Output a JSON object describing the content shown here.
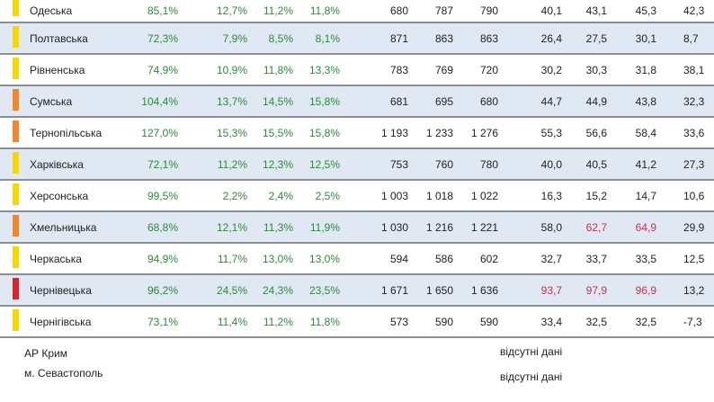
{
  "colors": {
    "yellow": "#f5d800",
    "orange": "#f0872a",
    "red": "#d9232e"
  },
  "rows": [
    {
      "region": "Одеська",
      "level": "yellow",
      "v1": "85,1%",
      "v2": "12,7%",
      "v3": "11,2%",
      "v4": "11,8%",
      "n1": "680",
      "n2": "787",
      "n3": "790",
      "r1": "40,1",
      "r2": "43,1",
      "r3": "45,3",
      "d": "42,3"
    },
    {
      "region": "Полтавська",
      "level": "yellow",
      "v1": "72,3%",
      "v2": "7,9%",
      "v3": "8,5%",
      "v4": "8,1%",
      "n1": "871",
      "n2": "863",
      "n3": "863",
      "r1": "26,4",
      "r2": "27,5",
      "r3": "30,1",
      "d": "8,7"
    },
    {
      "region": "Рівненська",
      "level": "yellow",
      "v1": "74,9%",
      "v2": "10,9%",
      "v3": "11,8%",
      "v4": "13,3%",
      "n1": "783",
      "n2": "769",
      "n3": "720",
      "r1": "30,2",
      "r2": "30,3",
      "r3": "31,8",
      "d": "38,1"
    },
    {
      "region": "Сумська",
      "level": "orange",
      "v1": "104,4%",
      "v2": "13,7%",
      "v3": "14,5%",
      "v4": "15,8%",
      "n1": "681",
      "n2": "695",
      "n3": "680",
      "r1": "44,7",
      "r2": "44,9",
      "r3": "43,8",
      "d": "32,3"
    },
    {
      "region": "Тернопільська",
      "level": "orange",
      "v1": "127,0%",
      "v2": "15,3%",
      "v3": "15,5%",
      "v4": "15,8%",
      "n1": "1 193",
      "n2": "1 233",
      "n3": "1 276",
      "r1": "55,3",
      "r2": "56,6",
      "r3": "58,4",
      "d": "33,6"
    },
    {
      "region": "Харківська",
      "level": "yellow",
      "v1": "72,1%",
      "v2": "11,2%",
      "v3": "12,3%",
      "v4": "12,5%",
      "n1": "753",
      "n2": "760",
      "n3": "780",
      "r1": "40,0",
      "r2": "40,5",
      "r3": "41,2",
      "d": "27,3"
    },
    {
      "region": "Херсонська",
      "level": "yellow",
      "v1": "99,5%",
      "v2": "2,2%",
      "v3": "2,4%",
      "v4": "2,5%",
      "n1": "1 003",
      "n2": "1 018",
      "n3": "1 022",
      "r1": "16,3",
      "r2": "15,2",
      "r3": "14,7",
      "d": "10,6"
    },
    {
      "region": "Хмельницька",
      "level": "orange",
      "v1": "68,8%",
      "v2": "12,1%",
      "v3": "11,3%",
      "v4": "11,9%",
      "n1": "1 030",
      "n2": "1 216",
      "n3": "1 221",
      "r1": "58,0",
      "r2": "62,7",
      "r3": "64,9",
      "d": "29,9",
      "r2red": true,
      "r3red": true
    },
    {
      "region": "Черкаська",
      "level": "yellow",
      "v1": "94,9%",
      "v2": "11,7%",
      "v3": "13,0%",
      "v4": "13,0%",
      "n1": "594",
      "n2": "586",
      "n3": "602",
      "r1": "32,7",
      "r2": "33,7",
      "r3": "33,5",
      "d": "12,5"
    },
    {
      "region": "Чернівецька",
      "level": "red",
      "v1": "96,2%",
      "v2": "24,5%",
      "v3": "24,3%",
      "v4": "23,5%",
      "n1": "1 671",
      "n2": "1 650",
      "n3": "1 636",
      "r1": "93,7",
      "r2": "97,9",
      "r3": "96,9",
      "d": "13,2",
      "r1red": true,
      "r2red": true,
      "r3red": true
    },
    {
      "region": "Чернігівська",
      "level": "yellow",
      "v1": "73,1%",
      "v2": "11,4%",
      "v3": "11,2%",
      "v4": "11,8%",
      "n1": "573",
      "n2": "590",
      "n3": "590",
      "r1": "33,4",
      "r2": "32,5",
      "r3": "32,5",
      "d": "-7,3"
    }
  ],
  "footer": [
    {
      "region": "АР Крим",
      "note": "відсутні дані"
    },
    {
      "region": "м. Севастополь",
      "note": "відсутні дані"
    }
  ]
}
